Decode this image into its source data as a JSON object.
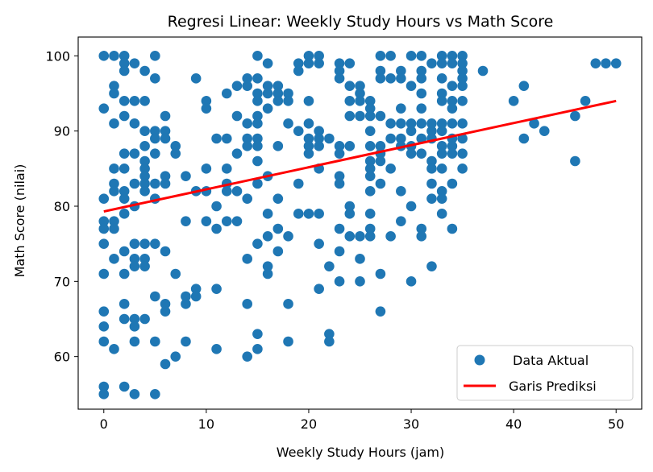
{
  "chart_data": {
    "type": "scatter",
    "title": "Regresi Linear: Weekly Study Hours vs Math Score",
    "xlabel": "Weekly Study Hours (jam)",
    "ylabel": "Math Score (nilai)",
    "xlim": [
      -2.5,
      52.5
    ],
    "ylim": [
      53,
      102.5
    ],
    "xticks": [
      0,
      10,
      20,
      30,
      40,
      50
    ],
    "yticks": [
      60,
      70,
      80,
      90,
      100
    ],
    "legend": "bottom-right",
    "grid": false,
    "series": [
      {
        "name": "Data Aktual",
        "kind": "scatter",
        "color": "#1f77b4",
        "points": [
          [
            0,
            100
          ],
          [
            0,
            93
          ],
          [
            0,
            81
          ],
          [
            0,
            78
          ],
          [
            0,
            77
          ],
          [
            0,
            75
          ],
          [
            0,
            71
          ],
          [
            0,
            66
          ],
          [
            0,
            64
          ],
          [
            0,
            62
          ],
          [
            0,
            56
          ],
          [
            0,
            55
          ],
          [
            1,
            100
          ],
          [
            1,
            96
          ],
          [
            1,
            95
          ],
          [
            1,
            91
          ],
          [
            1,
            85
          ],
          [
            1,
            83
          ],
          [
            1,
            82
          ],
          [
            1,
            78
          ],
          [
            1,
            77
          ],
          [
            1,
            73
          ],
          [
            1,
            61
          ],
          [
            2,
            100
          ],
          [
            2,
            99
          ],
          [
            2,
            98
          ],
          [
            2,
            94
          ],
          [
            2,
            92
          ],
          [
            2,
            87
          ],
          [
            2,
            85
          ],
          [
            2,
            82
          ],
          [
            2,
            81
          ],
          [
            2,
            79
          ],
          [
            2,
            74
          ],
          [
            2,
            71
          ],
          [
            2,
            67
          ],
          [
            2,
            65
          ],
          [
            2,
            56
          ],
          [
            3,
            99
          ],
          [
            3,
            94
          ],
          [
            3,
            91
          ],
          [
            3,
            87
          ],
          [
            3,
            83
          ],
          [
            3,
            80
          ],
          [
            3,
            75
          ],
          [
            3,
            73
          ],
          [
            3,
            72
          ],
          [
            3,
            65
          ],
          [
            3,
            64
          ],
          [
            3,
            62
          ],
          [
            3,
            55
          ],
          [
            4,
            98
          ],
          [
            4,
            94
          ],
          [
            4,
            90
          ],
          [
            4,
            88
          ],
          [
            4,
            86
          ],
          [
            4,
            85
          ],
          [
            4,
            84
          ],
          [
            4,
            83
          ],
          [
            4,
            82
          ],
          [
            4,
            75
          ],
          [
            4,
            73
          ],
          [
            4,
            72
          ],
          [
            4,
            65
          ],
          [
            5,
            100
          ],
          [
            5,
            97
          ],
          [
            5,
            90
          ],
          [
            5,
            89
          ],
          [
            5,
            87
          ],
          [
            5,
            83
          ],
          [
            5,
            81
          ],
          [
            5,
            75
          ],
          [
            5,
            68
          ],
          [
            5,
            62
          ],
          [
            5,
            55
          ],
          [
            6,
            92
          ],
          [
            6,
            90
          ],
          [
            6,
            89
          ],
          [
            6,
            84
          ],
          [
            6,
            83
          ],
          [
            6,
            74
          ],
          [
            6,
            67
          ],
          [
            6,
            66
          ],
          [
            6,
            59
          ],
          [
            7,
            88
          ],
          [
            7,
            87
          ],
          [
            7,
            71
          ],
          [
            7,
            60
          ],
          [
            8,
            84
          ],
          [
            8,
            78
          ],
          [
            8,
            68
          ],
          [
            8,
            67
          ],
          [
            8,
            62
          ],
          [
            9,
            97
          ],
          [
            9,
            82
          ],
          [
            9,
            69
          ],
          [
            9,
            68
          ],
          [
            10,
            94
          ],
          [
            10,
            93
          ],
          [
            10,
            85
          ],
          [
            10,
            82
          ],
          [
            10,
            78
          ],
          [
            11,
            89
          ],
          [
            11,
            80
          ],
          [
            11,
            77
          ],
          [
            11,
            69
          ],
          [
            11,
            61
          ],
          [
            12,
            95
          ],
          [
            12,
            89
          ],
          [
            12,
            85
          ],
          [
            12,
            83
          ],
          [
            12,
            82
          ],
          [
            12,
            78
          ],
          [
            13,
            96
          ],
          [
            13,
            92
          ],
          [
            13,
            87
          ],
          [
            13,
            82
          ],
          [
            13,
            78
          ],
          [
            14,
            97
          ],
          [
            14,
            96
          ],
          [
            14,
            91
          ],
          [
            14,
            89
          ],
          [
            14,
            88
          ],
          [
            14,
            81
          ],
          [
            14,
            73
          ],
          [
            14,
            67
          ],
          [
            14,
            60
          ],
          [
            15,
            100
          ],
          [
            15,
            97
          ],
          [
            15,
            95
          ],
          [
            15,
            94
          ],
          [
            15,
            92
          ],
          [
            15,
            91
          ],
          [
            15,
            89
          ],
          [
            15,
            88
          ],
          [
            15,
            86
          ],
          [
            15,
            83
          ],
          [
            15,
            75
          ],
          [
            15,
            63
          ],
          [
            15,
            61
          ],
          [
            16,
            99
          ],
          [
            16,
            96
          ],
          [
            16,
            95
          ],
          [
            16,
            93
          ],
          [
            16,
            84
          ],
          [
            16,
            79
          ],
          [
            16,
            76
          ],
          [
            16,
            72
          ],
          [
            16,
            71
          ],
          [
            17,
            96
          ],
          [
            17,
            95
          ],
          [
            17,
            94
          ],
          [
            17,
            88
          ],
          [
            17,
            81
          ],
          [
            17,
            77
          ],
          [
            17,
            74
          ],
          [
            18,
            95
          ],
          [
            18,
            94
          ],
          [
            18,
            91
          ],
          [
            18,
            76
          ],
          [
            18,
            67
          ],
          [
            18,
            62
          ],
          [
            19,
            99
          ],
          [
            19,
            98
          ],
          [
            19,
            90
          ],
          [
            19,
            83
          ],
          [
            19,
            79
          ],
          [
            20,
            100
          ],
          [
            20,
            99
          ],
          [
            20,
            94
          ],
          [
            20,
            91
          ],
          [
            20,
            89
          ],
          [
            20,
            88
          ],
          [
            20,
            87
          ],
          [
            20,
            79
          ],
          [
            21,
            100
          ],
          [
            21,
            99
          ],
          [
            21,
            90
          ],
          [
            21,
            89
          ],
          [
            21,
            88
          ],
          [
            21,
            85
          ],
          [
            21,
            79
          ],
          [
            21,
            75
          ],
          [
            21,
            69
          ],
          [
            22,
            89
          ],
          [
            22,
            72
          ],
          [
            22,
            63
          ],
          [
            22,
            62
          ],
          [
            23,
            99
          ],
          [
            23,
            98
          ],
          [
            23,
            97
          ],
          [
            23,
            88
          ],
          [
            23,
            87
          ],
          [
            23,
            84
          ],
          [
            23,
            83
          ],
          [
            23,
            77
          ],
          [
            23,
            74
          ],
          [
            23,
            70
          ],
          [
            24,
            99
          ],
          [
            24,
            96
          ],
          [
            24,
            94
          ],
          [
            24,
            92
          ],
          [
            24,
            88
          ],
          [
            24,
            80
          ],
          [
            24,
            79
          ],
          [
            24,
            76
          ],
          [
            25,
            96
          ],
          [
            25,
            95
          ],
          [
            25,
            94
          ],
          [
            25,
            92
          ],
          [
            25,
            76
          ],
          [
            25,
            73
          ],
          [
            25,
            70
          ],
          [
            26,
            94
          ],
          [
            26,
            93
          ],
          [
            26,
            92
          ],
          [
            26,
            90
          ],
          [
            26,
            88
          ],
          [
            26,
            86
          ],
          [
            26,
            85
          ],
          [
            26,
            84
          ],
          [
            26,
            82
          ],
          [
            26,
            79
          ],
          [
            26,
            77
          ],
          [
            26,
            76
          ],
          [
            27,
            100
          ],
          [
            27,
            98
          ],
          [
            27,
            97
          ],
          [
            27,
            92
          ],
          [
            27,
            88
          ],
          [
            27,
            87
          ],
          [
            27,
            86
          ],
          [
            27,
            83
          ],
          [
            27,
            71
          ],
          [
            27,
            66
          ],
          [
            28,
            100
          ],
          [
            28,
            97
          ],
          [
            28,
            91
          ],
          [
            28,
            89
          ],
          [
            28,
            85
          ],
          [
            28,
            76
          ],
          [
            29,
            98
          ],
          [
            29,
            97
          ],
          [
            29,
            93
          ],
          [
            29,
            91
          ],
          [
            29,
            89
          ],
          [
            29,
            88
          ],
          [
            29,
            82
          ],
          [
            29,
            78
          ],
          [
            30,
            100
          ],
          [
            30,
            96
          ],
          [
            30,
            91
          ],
          [
            30,
            90
          ],
          [
            30,
            88
          ],
          [
            30,
            87
          ],
          [
            30,
            80
          ],
          [
            30,
            70
          ],
          [
            31,
            100
          ],
          [
            31,
            98
          ],
          [
            31,
            97
          ],
          [
            31,
            95
          ],
          [
            31,
            93
          ],
          [
            31,
            91
          ],
          [
            31,
            89
          ],
          [
            31,
            87
          ],
          [
            31,
            77
          ],
          [
            31,
            76
          ],
          [
            32,
            99
          ],
          [
            32,
            91
          ],
          [
            32,
            90
          ],
          [
            32,
            89
          ],
          [
            32,
            86
          ],
          [
            32,
            85
          ],
          [
            32,
            83
          ],
          [
            32,
            81
          ],
          [
            32,
            72
          ],
          [
            33,
            100
          ],
          [
            33,
            99
          ],
          [
            33,
            97
          ],
          [
            33,
            95
          ],
          [
            33,
            94
          ],
          [
            33,
            91
          ],
          [
            33,
            90
          ],
          [
            33,
            88
          ],
          [
            33,
            87
          ],
          [
            33,
            85
          ],
          [
            33,
            82
          ],
          [
            33,
            81
          ],
          [
            33,
            79
          ],
          [
            34,
            100
          ],
          [
            34,
            99
          ],
          [
            34,
            96
          ],
          [
            34,
            94
          ],
          [
            34,
            93
          ],
          [
            34,
            91
          ],
          [
            34,
            89
          ],
          [
            34,
            88
          ],
          [
            34,
            87
          ],
          [
            34,
            83
          ],
          [
            34,
            77
          ],
          [
            35,
            100
          ],
          [
            35,
            99
          ],
          [
            35,
            98
          ],
          [
            35,
            97
          ],
          [
            35,
            96
          ],
          [
            35,
            94
          ],
          [
            35,
            91
          ],
          [
            35,
            89
          ],
          [
            35,
            87
          ],
          [
            35,
            85
          ],
          [
            37,
            98
          ],
          [
            40,
            94
          ],
          [
            41,
            96
          ],
          [
            41,
            89
          ],
          [
            42,
            91
          ],
          [
            43,
            90
          ],
          [
            46,
            92
          ],
          [
            46,
            86
          ],
          [
            47,
            94
          ],
          [
            48,
            99
          ],
          [
            49,
            99
          ],
          [
            50,
            99
          ]
        ]
      },
      {
        "name": "Garis Prediksi",
        "kind": "line",
        "color": "#ff0000",
        "points": [
          [
            0,
            79.3
          ],
          [
            50,
            94.0
          ]
        ]
      }
    ]
  }
}
